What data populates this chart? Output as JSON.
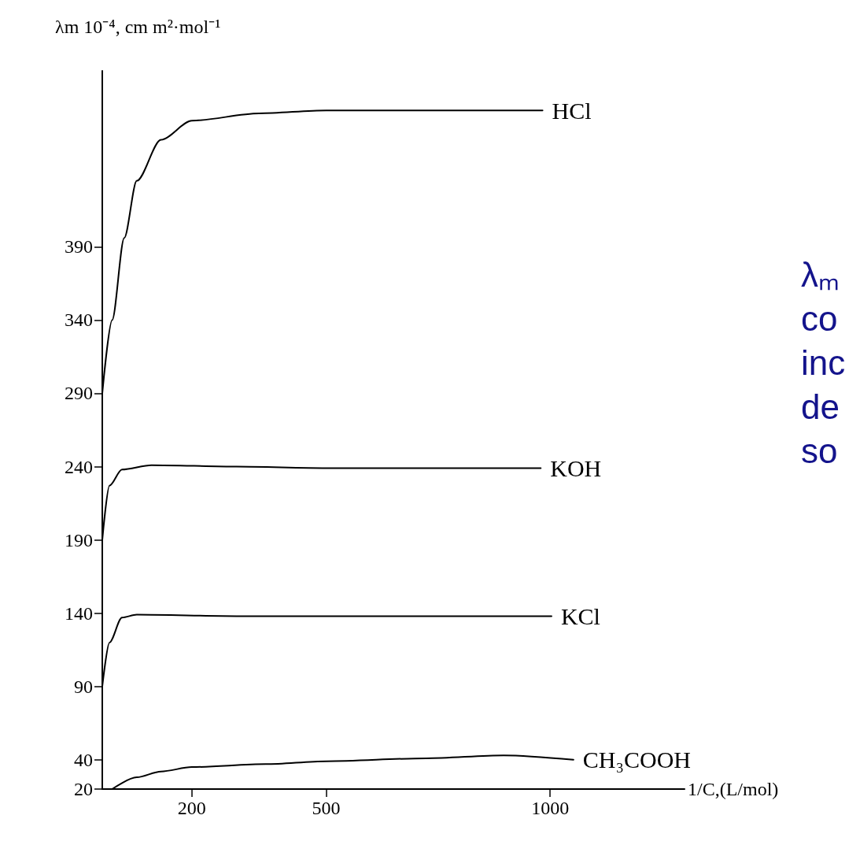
{
  "chart_data": {
    "type": "line",
    "xlabel": "1/C,(L/mol)",
    "ylabel": "λm 10⁻⁴, cm m²·mol⁻¹",
    "annotations": [
      "λₘ\nco\ninc\nde\nso"
    ],
    "series": [
      {
        "name": "HCl",
        "color": "#000000",
        "x": [
          0,
          22,
          49,
          77,
          131,
          200,
          350,
          500,
          983
        ],
        "values": [
          290,
          340,
          396,
          435,
          463,
          476,
          481,
          483,
          483
        ]
      },
      {
        "name": "KOH",
        "color": "#000000",
        "x": [
          0,
          16,
          44,
          110,
          300,
          500,
          979
        ],
        "values": [
          190,
          227,
          238,
          241,
          240,
          239,
          239
        ]
      },
      {
        "name": "KCl",
        "color": "#000000",
        "x": [
          0,
          16,
          44,
          77,
          300,
          500,
          1003
        ],
        "values": [
          90,
          120,
          137,
          139,
          138,
          138,
          138
        ]
      },
      {
        "name": "CH₃COOH",
        "color": "#000000",
        "x": [
          22,
          77,
          131,
          200,
          365,
          500,
          723,
          896,
          1052
        ],
        "values": [
          20,
          28,
          32,
          35,
          37,
          39,
          41,
          43,
          40
        ]
      }
    ],
    "xlim": [
      0,
      1300
    ],
    "xticks": [
      200,
      500,
      1000
    ],
    "ylim": [
      20,
      510
    ],
    "yticks": [
      20,
      40,
      90,
      140,
      190,
      240,
      290,
      340,
      390
    ],
    "grid": false,
    "legend": false,
    "marker": "none",
    "line_style": "solid"
  }
}
